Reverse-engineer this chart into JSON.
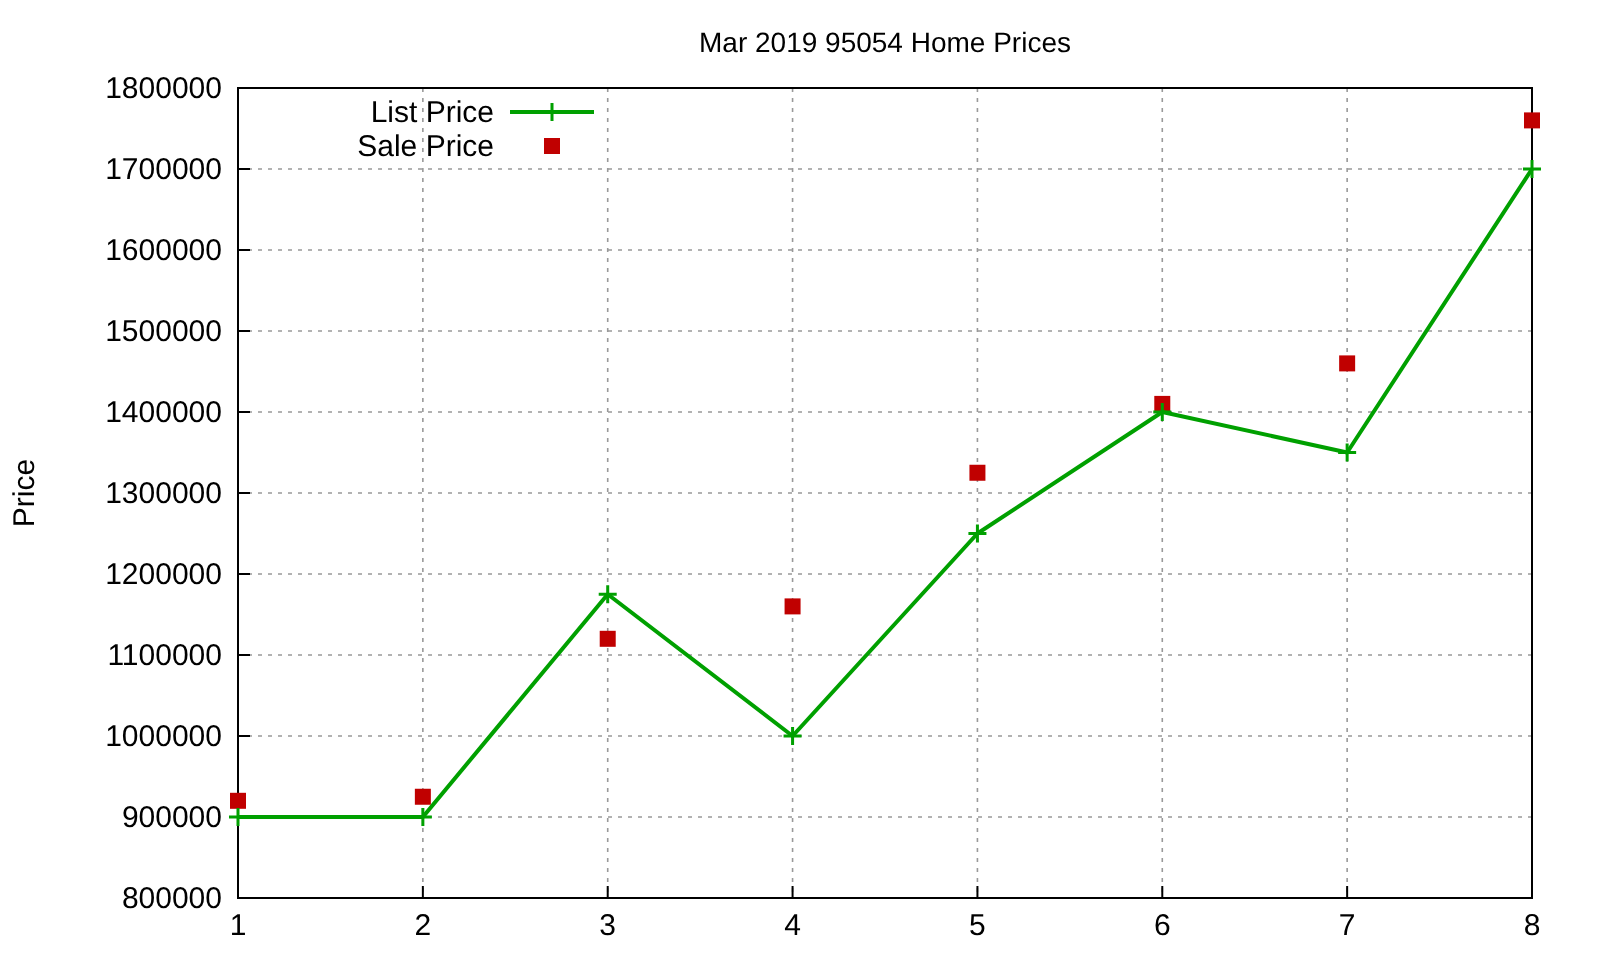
{
  "chart_data": {
    "type": "line",
    "title": "Mar 2019 95054 Home Prices",
    "ylabel": "Price",
    "x": [
      1,
      2,
      3,
      4,
      5,
      6,
      7,
      8
    ],
    "xlim": [
      1,
      8
    ],
    "xticks": [
      1,
      2,
      3,
      4,
      5,
      6,
      7,
      8
    ],
    "ylim": [
      800000,
      1800000
    ],
    "yticks": [
      800000,
      900000,
      1000000,
      1100000,
      1200000,
      1300000,
      1400000,
      1500000,
      1600000,
      1700000,
      1800000
    ],
    "grid": true,
    "legend": "top left",
    "series": [
      {
        "name": "List Price",
        "color": "#00a000",
        "marker": "cross",
        "values": [
          900000,
          900000,
          1175000,
          1000000,
          1250000,
          1400000,
          1350000,
          1700000
        ]
      },
      {
        "name": "Sale Price",
        "type": "scatter",
        "color": "#c00000",
        "marker": "square",
        "values": [
          920000,
          925000,
          1120000,
          1160000,
          1325000,
          1410000,
          1460000,
          1760000
        ]
      }
    ]
  }
}
